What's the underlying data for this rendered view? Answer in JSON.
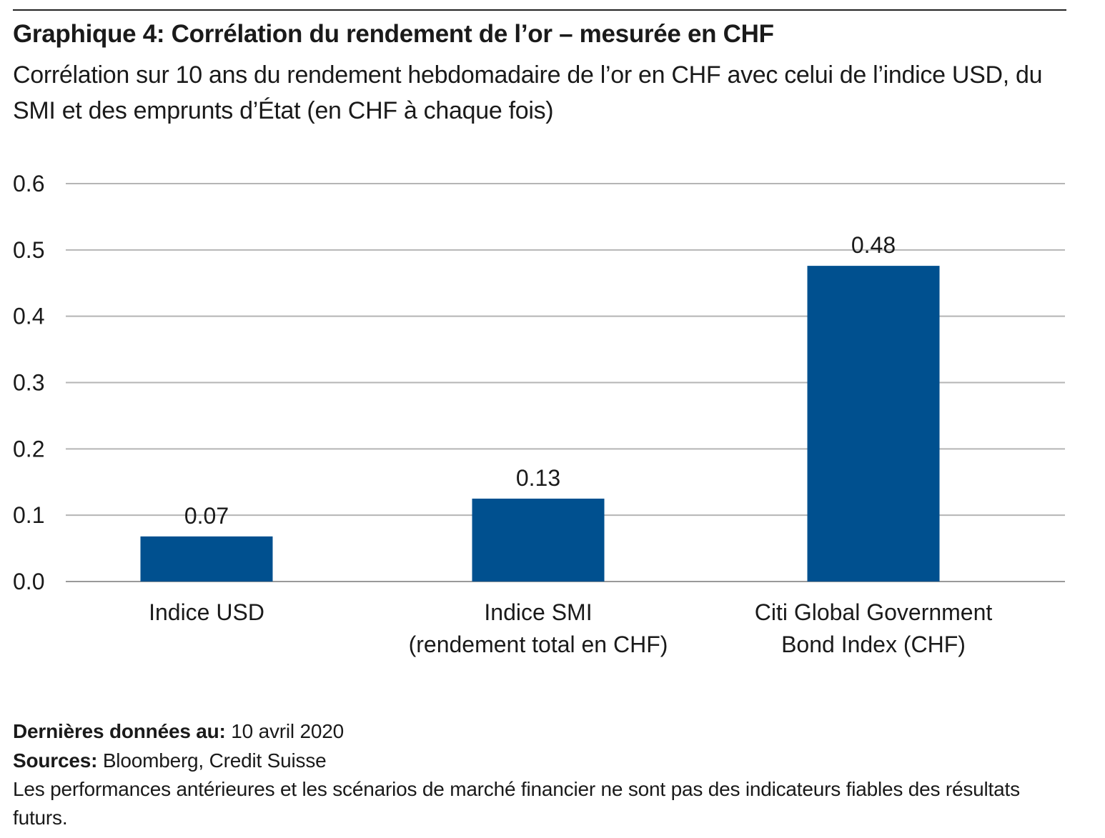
{
  "chart_data": {
    "type": "bar",
    "title": "Graphique 4: Corrélation du rendement de l’or – mesurée en CHF",
    "subtitle": "Corrélation sur 10 ans du rendement hebdomadaire de l’or en CHF avec celui de l’indice USD, du SMI et des emprunts d’État (en CHF à chaque fois)",
    "categories": [
      [
        "Indice USD"
      ],
      [
        "Indice SMI",
        "(rendement total en CHF)"
      ],
      [
        "Citi Global Government",
        "Bond Index (CHF)"
      ]
    ],
    "values": [
      0.068,
      0.125,
      0.476
    ],
    "data_labels": [
      "0.07",
      "0.13",
      "0.48"
    ],
    "ylim": [
      0,
      0.6
    ],
    "yticks": [
      "0.0",
      "0.1",
      "0.2",
      "0.3",
      "0.4",
      "0.5",
      "0.6"
    ],
    "xlabel": "",
    "ylabel": "",
    "grid": true,
    "bar_color": "#00508f"
  },
  "footer": {
    "date_label": "Dernières données au:",
    "date_value": "10 avril 2020",
    "sources_label": "Sources:",
    "sources_value": "Bloomberg, Credit Suisse",
    "disclaimer": "Les performances antérieures et les scénarios de marché financier ne sont pas des indicateurs fiables des résultats futurs."
  }
}
